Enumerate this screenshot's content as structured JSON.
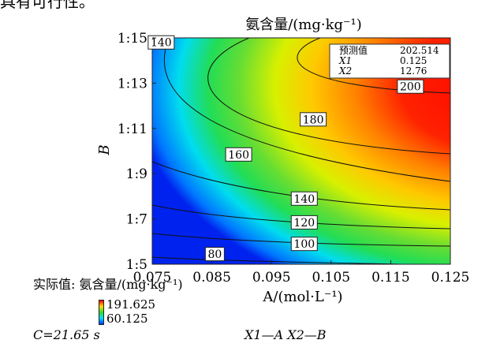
{
  "top_text": "具有可行性。",
  "chart_data": {
    "type": "contour",
    "title": "氨含量/(mg·kg⁻¹)",
    "xlabel": "A/(mol·L⁻¹)",
    "ylabel": "B",
    "x_ticks": [
      "0.075",
      "0.085",
      "0.095",
      "0.105",
      "0.115",
      "0.125"
    ],
    "y_ticks": [
      "1:5",
      "1:7",
      "1:9",
      "1:11",
      "1:13",
      "1:15"
    ],
    "xlim": [
      0.075,
      0.125
    ],
    "ylim": [
      5,
      15
    ],
    "contour_levels": [
      {
        "label": "80",
        "value": 80,
        "label_x": 0.0855,
        "label_y": 5.45
      },
      {
        "label": "100",
        "value": 100,
        "label_x": 0.1005,
        "label_y": 5.9
      },
      {
        "label": "120",
        "value": 120,
        "label_x": 0.1005,
        "label_y": 6.85
      },
      {
        "label": "140",
        "value": 140,
        "label_x": 0.1005,
        "label_y": 7.9
      },
      {
        "label": "160",
        "value": 160,
        "label_x": 0.0895,
        "label_y": 9.85
      },
      {
        "label": "180",
        "value": 180,
        "label_x": 0.102,
        "label_y": 11.4
      },
      {
        "label": "200",
        "value": 200,
        "label_x": 0.1183,
        "label_y": 12.85
      },
      {
        "label": "140",
        "value": 140,
        "label_x": 0.0765,
        "label_y": 14.8
      }
    ],
    "prediction_box": {
      "rows": [
        {
          "name": "预测值",
          "value": "202.514"
        },
        {
          "name": "X1",
          "value": "0.125"
        },
        {
          "name": "X2",
          "value": "12.76"
        }
      ]
    },
    "legend": {
      "caption": "实际值: 氨含量/(mg·kg⁻¹)",
      "max": "191.625",
      "min": "60.125"
    },
    "footer_left": "C=21.65 s",
    "footer_right": "X1—A  X2—B"
  }
}
